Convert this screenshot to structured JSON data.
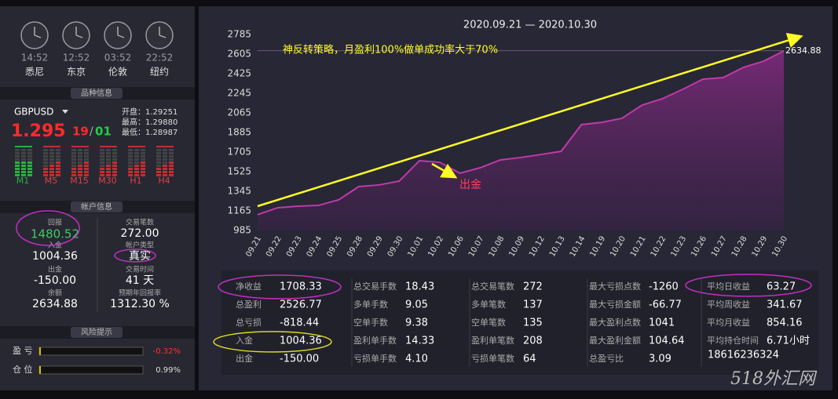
{
  "clocks": [
    {
      "time": "14:52",
      "city": "悉尼"
    },
    {
      "time": "12:52",
      "city": "东京"
    },
    {
      "time": "03:52",
      "city": "伦敦"
    },
    {
      "time": "22:52",
      "city": "纽约"
    }
  ],
  "symbol_section": {
    "header": "品种信息",
    "symbol": "GBPUSD",
    "price": "1.295",
    "price_small": "19",
    "separator": "/",
    "price_small2": "01",
    "open": "开盘：1.29251",
    "high": "最高：1.29880",
    "low": "最低：1.28987",
    "timeframes": [
      "M1",
      "M5",
      "M15",
      "M30",
      "H1",
      "H4"
    ]
  },
  "account": {
    "header": "帐户信息",
    "items": [
      {
        "label": "回报",
        "value": "1480.52"
      },
      {
        "label": "交易笔数",
        "value": "272.00"
      },
      {
        "label": "入金",
        "value": "1004.36"
      },
      {
        "label": "帐户类型",
        "value": "真实"
      },
      {
        "label": "出金",
        "value": "-150.00"
      },
      {
        "label": "交易时间",
        "value": "41 天"
      },
      {
        "label": "余额",
        "value": "2634.88"
      },
      {
        "label": "预期年回报率",
        "value": "1312.30 %"
      }
    ]
  },
  "risk": {
    "header": "风险提示",
    "items": [
      {
        "label": "盈 亏",
        "value": "-0.32%"
      },
      {
        "label": "仓 位",
        "value": "0.99%"
      }
    ]
  },
  "chart_data": {
    "type": "area",
    "title": "2020.09.21 — 2020.10.30",
    "annotation": "神反转策略，月盈利100%做单成功率大于70%",
    "withdraw_note": "出金",
    "color": "#c03aa8",
    "categories": [
      "09.21",
      "09.22",
      "09.23",
      "09.24",
      "09.25",
      "09.28",
      "09.29",
      "09.30",
      "10.01",
      "10.02",
      "10.06",
      "10.07",
      "10.08",
      "10.09",
      "10.12",
      "10.13",
      "10.14",
      "10.19",
      "10.20",
      "10.21",
      "10.22",
      "10.23",
      "10.26",
      "10.27",
      "10.28",
      "10.29",
      "10.30"
    ],
    "values": [
      1130,
      1194,
      1208,
      1215,
      1266,
      1388,
      1403,
      1439,
      1626,
      1611,
      1511,
      1561,
      1633,
      1655,
      1683,
      1712,
      1957,
      1978,
      2015,
      2137,
      2195,
      2281,
      2375,
      2389,
      2483,
      2540,
      2634.88
    ],
    "ylim": [
      985,
      2785
    ],
    "yticks": [
      985,
      1165,
      1345,
      1525,
      1705,
      1885,
      2065,
      2245,
      2425,
      2605,
      2785
    ]
  },
  "stats": {
    "columns": [
      [
        {
          "label": "净收益",
          "value": "1708.33"
        },
        {
          "label": "总盈利",
          "value": "2526.77"
        },
        {
          "label": "总亏损",
          "value": "-818.44"
        },
        {
          "label": "入金",
          "value": "1004.36"
        },
        {
          "label": "出金",
          "value": "-150.00"
        }
      ],
      [
        {
          "label": "总交易手数",
          "value": "18.43"
        },
        {
          "label": "多单手数",
          "value": "9.05"
        },
        {
          "label": "空单手数",
          "value": "9.38"
        },
        {
          "label": "盈利单手数",
          "value": "14.33"
        },
        {
          "label": "亏损单手数",
          "value": "4.10"
        }
      ],
      [
        {
          "label": "总交易笔数",
          "value": "272"
        },
        {
          "label": "多单笔数",
          "value": "137"
        },
        {
          "label": "空单笔数",
          "value": "135"
        },
        {
          "label": "盈利单笔数",
          "value": "208"
        },
        {
          "label": "亏损单笔数",
          "value": "64"
        }
      ],
      [
        {
          "label": "最大亏损点数",
          "value": "-1260"
        },
        {
          "label": "最大亏损金额",
          "value": "-66.77"
        },
        {
          "label": "最大盈利点数",
          "value": "1041"
        },
        {
          "label": "最大盈利金额",
          "value": "104.64"
        },
        {
          "label": "总盈亏比",
          "value": "3.09"
        }
      ],
      [
        {
          "label": "平均日收益",
          "value": "63.27"
        },
        {
          "label": "平均周收益",
          "value": "341.67"
        },
        {
          "label": "平均月收益",
          "value": "854.16"
        },
        {
          "label": "平均持仓时间",
          "value": "6.71小时"
        }
      ]
    ],
    "phone": "18616236324"
  },
  "watermark": "518外汇网"
}
